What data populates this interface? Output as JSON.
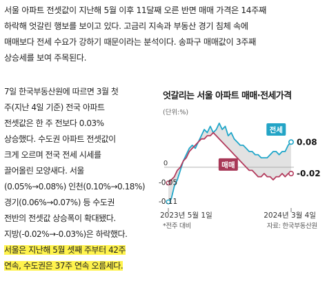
{
  "article": {
    "intro_lines": [
      "서울 아파트 전셋값이 지난해 5월 이후 11달째 오른 반면 매매 가격은 14주째",
      "하락해 엇갈린 행보를 보이고 있다. 고금리 지속과 부동산 경기 침체 속에",
      "매매보다 전세 수요가 강하기 때문이라는 분석이다. 송파구 매매값이 3주째",
      "상승세를 보여 주목된다."
    ],
    "body_lines": [
      "7일 한국부동산원에 따르면 3월 첫",
      "주(지난 4일 기준) 전국 아파트",
      "전셋값은 한 주 전보다 0.03%",
      "상승했다. 수도권 아파트 전셋값이",
      "크게 오르며 전국 전세 시세를",
      "끌어올린 모양새다. 서울",
      "(0.05%→0.08%) 인천(0.10%→0.18%)",
      "경기(0.06%→0.07%) 등 수도권",
      "전반의 전셋값 상승폭이 확대됐다.",
      "지방(-0.02%→-0.03%)은 하락했다."
    ],
    "highlight_lines": [
      "서울은 지난해 5월 셋째 주부터 42주",
      "연속, 수도권은 37주 연속 오름세다."
    ],
    "highlight_color": "#fff34d"
  },
  "chart_data": {
    "type": "line",
    "title": "엇갈리는 서울 아파트 매매·전세가격",
    "unit_label": "(단위:%)",
    "note": "*전주 대비",
    "source": "자료: 한국부동산원",
    "xlabels": [
      "2023년 5월 1일",
      "2024년 3월 4일"
    ],
    "zero_label": "0",
    "ylim": [
      -0.125,
      0.155
    ],
    "series": [
      {
        "name": "전세",
        "color": "#1fa6c9",
        "badge_color": "#23a4c6",
        "end_label": "0.08",
        "start_label": "-0.11",
        "values": [
          -0.11,
          -0.1,
          -0.06,
          -0.04,
          -0.01,
          0.02,
          0.04,
          0.06,
          0.07,
          0.06,
          0.08,
          0.1,
          0.12,
          0.11,
          0.13,
          0.11,
          0.12,
          0.14,
          0.12,
          0.13,
          0.1,
          0.11,
          0.09,
          0.08,
          0.07,
          0.07,
          0.06,
          0.05,
          0.05,
          0.04,
          0.04,
          0.03,
          0.03,
          0.03,
          0.04,
          0.05,
          0.05,
          0.04,
          0.05,
          0.05,
          0.07,
          0.08
        ]
      },
      {
        "name": "매매",
        "color": "#b33a5c",
        "badge_color": "#a83857",
        "end_label": "-0.02",
        "start_label": "-0.05",
        "values": [
          -0.05,
          -0.04,
          -0.03,
          -0.01,
          0.0,
          0.02,
          0.03,
          0.05,
          0.06,
          0.07,
          0.08,
          0.09,
          0.09,
          0.1,
          0.1,
          0.11,
          0.1,
          0.09,
          0.08,
          0.07,
          0.06,
          0.05,
          0.04,
          0.03,
          0.02,
          0.01,
          0.0,
          -0.01,
          -0.01,
          -0.02,
          -0.03,
          -0.03,
          -0.02,
          -0.03,
          -0.03,
          -0.04,
          -0.03,
          -0.03,
          -0.02,
          -0.03,
          -0.02,
          -0.02
        ]
      }
    ],
    "fill_color": "#e2e2e2",
    "zero_line_color": "#9a9a9a",
    "grid": false
  }
}
